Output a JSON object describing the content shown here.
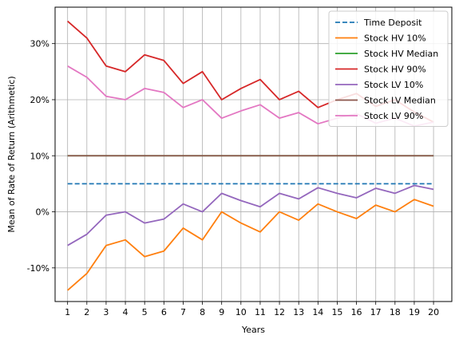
{
  "chart_data": {
    "type": "line",
    "title": "",
    "xlabel": "Years",
    "ylabel": "Mean of Rate of Return (Arithmetic)",
    "x": [
      1,
      2,
      3,
      4,
      5,
      6,
      7,
      8,
      9,
      10,
      11,
      12,
      13,
      14,
      15,
      16,
      17,
      18,
      19,
      20
    ],
    "xlim": [
      0.35,
      20.95
    ],
    "ylim": [
      -0.16,
      0.365
    ],
    "yticks": [
      -0.1,
      0,
      0.1,
      0.2,
      0.3
    ],
    "ytick_labels": [
      "-10%",
      "0%",
      "10%",
      "20%",
      "30%"
    ],
    "grid": true,
    "legend_position": "top-right",
    "series": [
      {
        "name": "Time Deposit",
        "color": "#1f77b4",
        "dash": true,
        "values": [
          0.05,
          0.05,
          0.05,
          0.05,
          0.05,
          0.05,
          0.05,
          0.05,
          0.05,
          0.05,
          0.05,
          0.05,
          0.05,
          0.05,
          0.05,
          0.05,
          0.05,
          0.05,
          0.05,
          0.05
        ]
      },
      {
        "name": "Stock HV 10%",
        "color": "#ff7f0e",
        "dash": false,
        "values": [
          -0.14,
          -0.11,
          -0.06,
          -0.05,
          -0.08,
          -0.07,
          -0.029,
          -0.05,
          0.0,
          -0.02,
          -0.036,
          0.0,
          -0.015,
          0.014,
          0.0,
          -0.012,
          0.012,
          0.0,
          0.022,
          0.01
        ]
      },
      {
        "name": "Stock HV Median",
        "color": "#2ca02c",
        "dash": false,
        "values": [
          0.1,
          0.1,
          0.1,
          0.1,
          0.1,
          0.1,
          0.1,
          0.1,
          0.1,
          0.1,
          0.1,
          0.1,
          0.1,
          0.1,
          0.1,
          0.1,
          0.1,
          0.1,
          0.1,
          0.1
        ]
      },
      {
        "name": "Stock HV 90%",
        "color": "#d62728",
        "dash": false,
        "values": [
          0.34,
          0.31,
          0.26,
          0.25,
          0.28,
          0.27,
          0.229,
          0.25,
          0.2,
          0.22,
          0.236,
          0.2,
          0.215,
          0.186,
          0.2,
          0.211,
          0.188,
          0.2,
          0.178,
          0.16
        ]
      },
      {
        "name": "Stock LV 10%",
        "color": "#9467bd",
        "dash": false,
        "values": [
          -0.06,
          -0.04,
          -0.006,
          0.0,
          -0.02,
          -0.013,
          0.014,
          0.0,
          0.033,
          0.02,
          0.009,
          0.033,
          0.023,
          0.043,
          0.033,
          0.025,
          0.042,
          0.033,
          0.047,
          0.04
        ]
      },
      {
        "name": "Stock LV Median",
        "color": "#8c564b",
        "dash": false,
        "values": [
          0.1,
          0.1,
          0.1,
          0.1,
          0.1,
          0.1,
          0.1,
          0.1,
          0.1,
          0.1,
          0.1,
          0.1,
          0.1,
          0.1,
          0.1,
          0.1,
          0.1,
          0.1,
          0.1,
          0.1
        ]
      },
      {
        "name": "Stock LV 90%",
        "color": "#e377c2",
        "dash": false,
        "values": [
          0.26,
          0.24,
          0.206,
          0.2,
          0.22,
          0.213,
          0.186,
          0.2,
          0.167,
          0.18,
          0.191,
          0.167,
          0.177,
          0.157,
          0.167,
          0.175,
          0.158,
          0.167,
          0.153,
          0.16
        ]
      }
    ]
  }
}
